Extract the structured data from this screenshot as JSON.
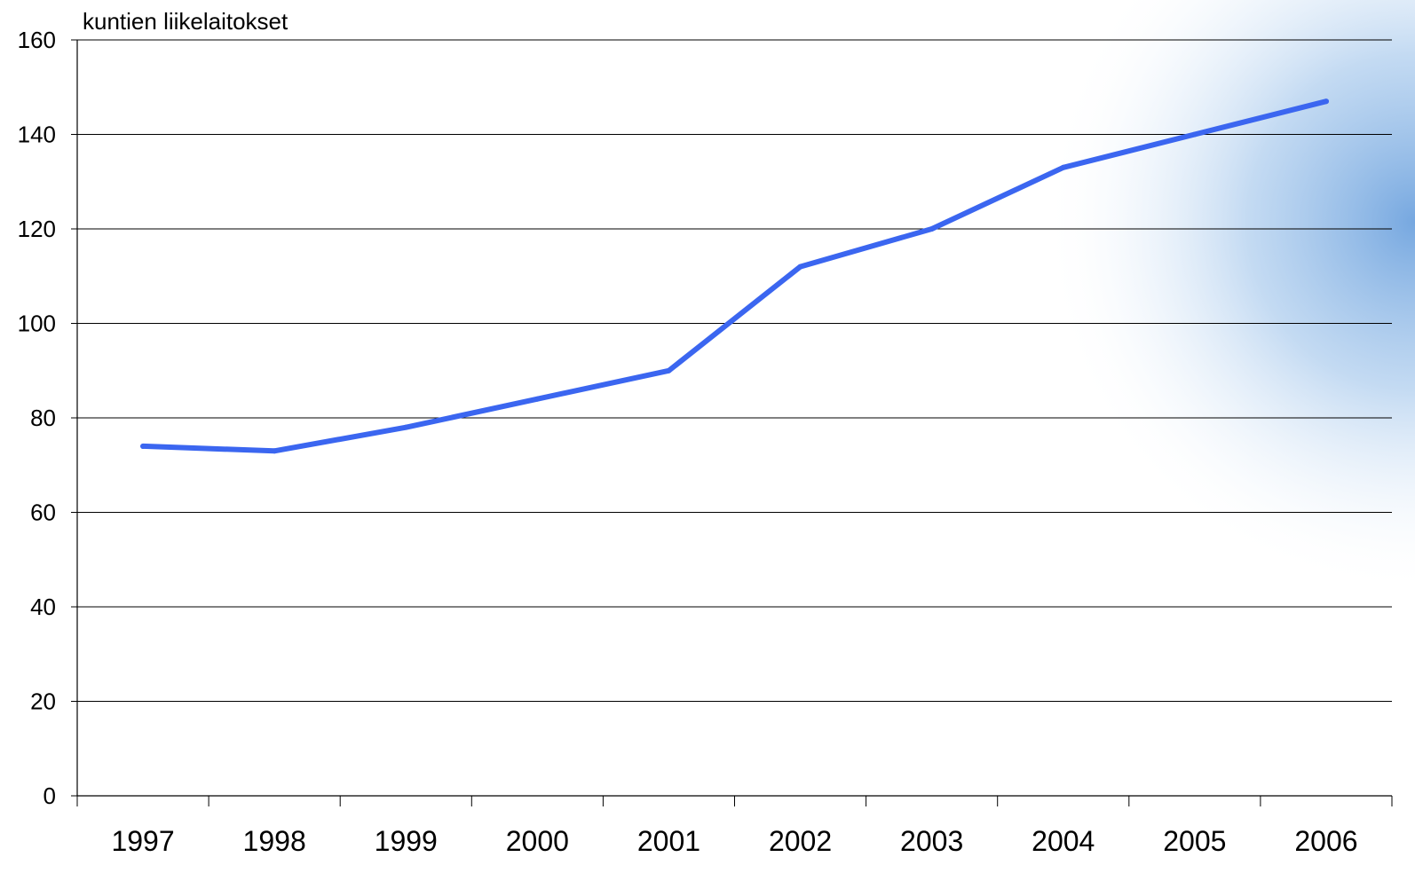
{
  "chart_data": {
    "type": "line",
    "title": "",
    "xlabel": "",
    "ylabel": "kuntien liikelaitokset",
    "categories": [
      "1997",
      "1998",
      "1999",
      "2000",
      "2001",
      "2002",
      "2003",
      "2004",
      "2005",
      "2006"
    ],
    "series": [
      {
        "values": [
          74,
          73,
          78,
          84,
          90,
          112,
          120,
          133,
          140,
          147
        ],
        "color": "#3b66f0"
      }
    ],
    "ylim": [
      0,
      160
    ],
    "yticks": [
      "0",
      "20",
      "40",
      "60",
      "80",
      "100",
      "120",
      "140",
      "160"
    ],
    "grid": true,
    "legend": "none"
  }
}
